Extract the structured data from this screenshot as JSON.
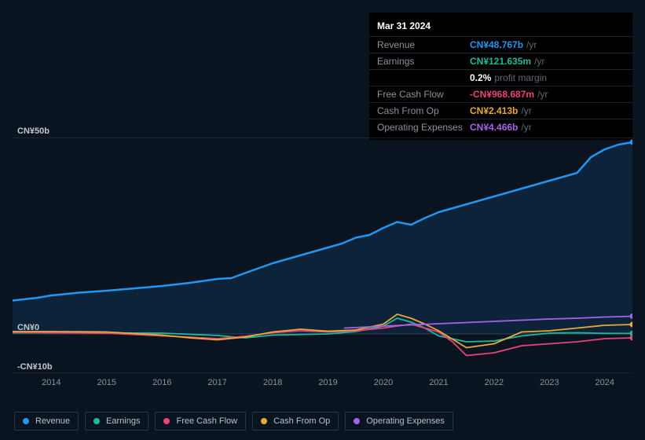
{
  "tooltip": {
    "date": "Mar 31 2024",
    "rows": [
      {
        "label": "Revenue",
        "value": "CN¥48.767b",
        "unit": "/yr",
        "color": "#2196f3"
      },
      {
        "label": "Earnings",
        "value": "CN¥121.635m",
        "unit": "/yr",
        "color": "#1abc9c"
      },
      {
        "label": "",
        "value": "0.2%",
        "unit": "profit margin",
        "color": "#ffffff"
      },
      {
        "label": "Free Cash Flow",
        "value": "-CN¥968.687m",
        "unit": "/yr",
        "color": "#e8447a"
      },
      {
        "label": "Cash From Op",
        "value": "CN¥2.413b",
        "unit": "/yr",
        "color": "#e8a83a"
      },
      {
        "label": "Operating Expenses",
        "value": "CN¥4.466b",
        "unit": "/yr",
        "color": "#a464e8"
      }
    ]
  },
  "chart": {
    "type": "line",
    "background_color": "#0a1420",
    "grid_color": "#2a3642",
    "axis_label_color": "#c0c6cc",
    "x_axis": {
      "min": 2013.3,
      "max": 2024.5,
      "ticks": [
        2014,
        2015,
        2016,
        2017,
        2018,
        2019,
        2020,
        2021,
        2022,
        2023,
        2024
      ],
      "labels": [
        "2014",
        "2015",
        "2016",
        "2017",
        "2018",
        "2019",
        "2020",
        "2021",
        "2022",
        "2023",
        "2024"
      ],
      "label_fontsize": 11
    },
    "y_axis": {
      "min": -10,
      "max": 50,
      "ticks": [
        -10,
        0,
        50
      ],
      "labels": [
        "-CN¥10b",
        "CN¥0",
        "CN¥50b"
      ],
      "label_fontsize": 11
    },
    "series": [
      {
        "name": "Revenue",
        "color": "#2196f3",
        "line_width": 2.5,
        "fill_opacity": 0.12,
        "data": [
          [
            2013.3,
            8.5
          ],
          [
            2013.75,
            9.2
          ],
          [
            2014,
            9.8
          ],
          [
            2014.5,
            10.5
          ],
          [
            2015,
            11.0
          ],
          [
            2015.5,
            11.6
          ],
          [
            2016,
            12.2
          ],
          [
            2016.5,
            13.0
          ],
          [
            2017,
            14.0
          ],
          [
            2017.25,
            14.2
          ],
          [
            2017.5,
            15.5
          ],
          [
            2018,
            18.0
          ],
          [
            2018.5,
            20.0
          ],
          [
            2019,
            22.0
          ],
          [
            2019.25,
            23.0
          ],
          [
            2019.5,
            24.5
          ],
          [
            2019.75,
            25.2
          ],
          [
            2020,
            27.0
          ],
          [
            2020.25,
            28.5
          ],
          [
            2020.5,
            27.8
          ],
          [
            2020.75,
            29.5
          ],
          [
            2021,
            31.0
          ],
          [
            2021.5,
            33.0
          ],
          [
            2022,
            35.0
          ],
          [
            2022.5,
            37.0
          ],
          [
            2023,
            39.0
          ],
          [
            2023.5,
            41.0
          ],
          [
            2023.75,
            45.0
          ],
          [
            2024,
            47.0
          ],
          [
            2024.25,
            48.2
          ],
          [
            2024.5,
            48.8
          ]
        ]
      },
      {
        "name": "Earnings",
        "color": "#1abc9c",
        "line_width": 1.8,
        "data": [
          [
            2013.3,
            0.3
          ],
          [
            2014,
            0.3
          ],
          [
            2015,
            0.25
          ],
          [
            2016,
            0.2
          ],
          [
            2017,
            -0.4
          ],
          [
            2017.5,
            -1.0
          ],
          [
            2018,
            -0.3
          ],
          [
            2019,
            0.0
          ],
          [
            2019.5,
            0.6
          ],
          [
            2020,
            2.0
          ],
          [
            2020.25,
            4.0
          ],
          [
            2020.5,
            3.0
          ],
          [
            2020.75,
            1.5
          ],
          [
            2021,
            -0.5
          ],
          [
            2021.5,
            -2.0
          ],
          [
            2022,
            -1.8
          ],
          [
            2022.5,
            -0.5
          ],
          [
            2023,
            0.2
          ],
          [
            2023.5,
            0.3
          ],
          [
            2024,
            0.15
          ],
          [
            2024.5,
            0.12
          ]
        ]
      },
      {
        "name": "Free Cash Flow",
        "color": "#e8447a",
        "line_width": 1.8,
        "data": [
          [
            2013.3,
            0.4
          ],
          [
            2014,
            0.3
          ],
          [
            2015,
            0.2
          ],
          [
            2016,
            -0.5
          ],
          [
            2016.5,
            -0.8
          ],
          [
            2017,
            -1.2
          ],
          [
            2017.5,
            -0.6
          ],
          [
            2018,
            0.3
          ],
          [
            2018.5,
            0.8
          ],
          [
            2019,
            0.5
          ],
          [
            2019.5,
            0.8
          ],
          [
            2020,
            1.5
          ],
          [
            2020.5,
            2.5
          ],
          [
            2021,
            0.5
          ],
          [
            2021.25,
            -2.0
          ],
          [
            2021.5,
            -5.5
          ],
          [
            2022,
            -4.8
          ],
          [
            2022.5,
            -3.0
          ],
          [
            2023,
            -2.5
          ],
          [
            2023.5,
            -2.0
          ],
          [
            2024,
            -1.2
          ],
          [
            2024.5,
            -1.0
          ]
        ]
      },
      {
        "name": "Cash From Op",
        "color": "#e8a83a",
        "line_width": 1.8,
        "data": [
          [
            2013.3,
            0.6
          ],
          [
            2014,
            0.6
          ],
          [
            2015,
            0.5
          ],
          [
            2016,
            -0.3
          ],
          [
            2016.5,
            -1.0
          ],
          [
            2017,
            -1.5
          ],
          [
            2017.5,
            -0.8
          ],
          [
            2018,
            0.5
          ],
          [
            2018.5,
            1.2
          ],
          [
            2019,
            0.7
          ],
          [
            2019.5,
            1.0
          ],
          [
            2020,
            2.5
          ],
          [
            2020.25,
            5.0
          ],
          [
            2020.5,
            4.0
          ],
          [
            2020.75,
            2.5
          ],
          [
            2021,
            0.8
          ],
          [
            2021.5,
            -3.5
          ],
          [
            2022,
            -2.5
          ],
          [
            2022.5,
            0.5
          ],
          [
            2023,
            0.8
          ],
          [
            2023.5,
            1.5
          ],
          [
            2024,
            2.2
          ],
          [
            2024.5,
            2.4
          ]
        ]
      },
      {
        "name": "Operating Expenses",
        "color": "#a464e8",
        "line_width": 1.8,
        "data": [
          [
            2019.3,
            1.5
          ],
          [
            2019.75,
            1.8
          ],
          [
            2020,
            2.0
          ],
          [
            2020.5,
            2.3
          ],
          [
            2021,
            2.6
          ],
          [
            2021.5,
            2.9
          ],
          [
            2022,
            3.2
          ],
          [
            2022.5,
            3.5
          ],
          [
            2023,
            3.8
          ],
          [
            2023.5,
            4.0
          ],
          [
            2024,
            4.3
          ],
          [
            2024.5,
            4.5
          ]
        ]
      }
    ],
    "legend": {
      "position": "bottom-left",
      "items": [
        "Revenue",
        "Earnings",
        "Free Cash Flow",
        "Cash From Op",
        "Operating Expenses"
      ],
      "border_color": "#2a3642",
      "text_color": "#b8c0c8",
      "fontsize": 11
    }
  }
}
